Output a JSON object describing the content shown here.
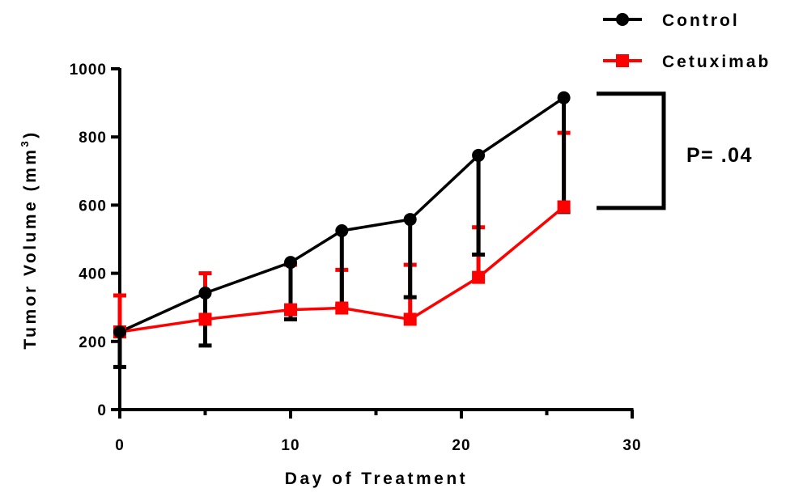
{
  "chart_data": {
    "type": "line",
    "xlabel": "Day of Treatment",
    "ylabel_main": "Tumor Volume (mm",
    "ylabel_sup": "3",
    "ylabel_close": ")",
    "xlim": [
      0,
      30
    ],
    "ylim": [
      0,
      1000
    ],
    "x_ticks": [
      "0",
      "10",
      "20",
      "30"
    ],
    "x_tick_values": [
      0,
      10,
      20,
      30
    ],
    "y_ticks": [
      "0",
      "200",
      "400",
      "600",
      "800",
      "1000"
    ],
    "y_tick_values": [
      0,
      200,
      400,
      600,
      800,
      1000
    ],
    "grid": false,
    "legend_position": "top-right",
    "series": [
      {
        "name": "Control",
        "color": "#000000",
        "marker": "circle",
        "x": [
          0,
          5,
          10,
          13,
          17,
          21,
          26
        ],
        "y": [
          228,
          342,
          432,
          525,
          558,
          746,
          915
        ],
        "error_lower": [
          125,
          188,
          265,
          305,
          330,
          455,
          580
        ],
        "error_upper": [
          228,
          342,
          432,
          525,
          558,
          746,
          915
        ]
      },
      {
        "name": "Cetuximab",
        "color": "#ff0000",
        "marker": "square",
        "x": [
          0,
          5,
          10,
          13,
          17,
          21,
          26
        ],
        "y": [
          228,
          265,
          293,
          298,
          265,
          388,
          595
        ],
        "error_lower": [
          228,
          265,
          293,
          298,
          265,
          388,
          595
        ],
        "error_upper": [
          335,
          400,
          425,
          410,
          425,
          535,
          812
        ]
      }
    ],
    "annotation": {
      "text": "P= .04",
      "bracket_top": 915,
      "bracket_bottom": 580
    }
  }
}
